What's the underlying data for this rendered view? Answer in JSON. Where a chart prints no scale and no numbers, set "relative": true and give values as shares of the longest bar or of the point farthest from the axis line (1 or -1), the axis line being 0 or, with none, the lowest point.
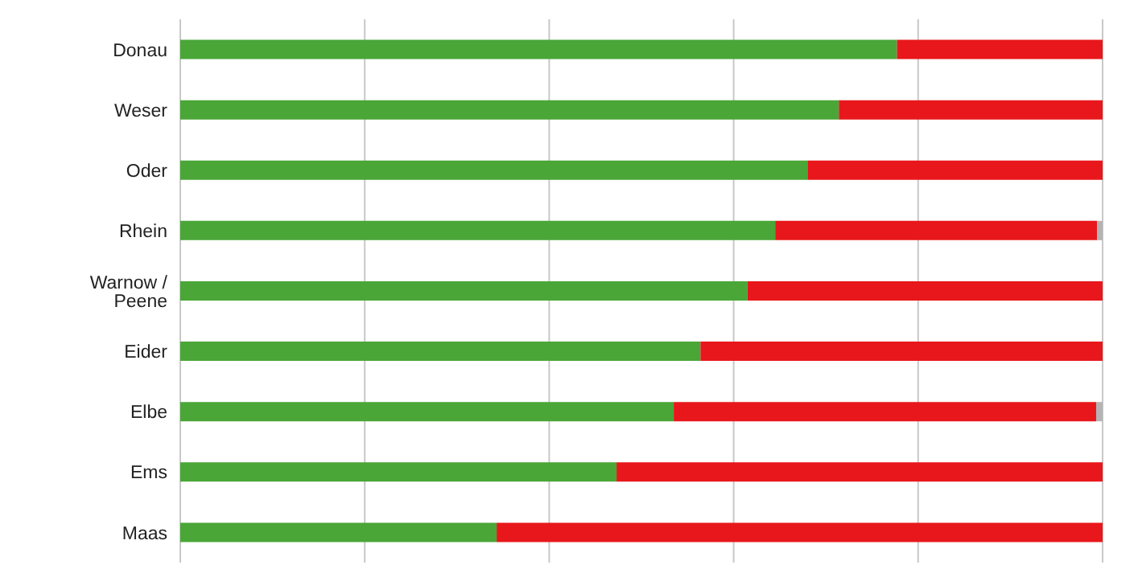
{
  "chart_data": {
    "type": "bar",
    "orientation": "horizontal",
    "stacked": true,
    "relative": true,
    "grid": "x",
    "legend": false,
    "categories": [
      "Donau",
      "Weser",
      "Oder",
      "Rhein",
      "Warnow / Peene",
      "Eider",
      "Elbe",
      "Ems",
      "Maas"
    ],
    "series": [
      {
        "color": "#4aa637",
        "values": [
          0.777,
          0.714,
          0.68,
          0.645,
          0.615,
          0.564,
          0.535,
          0.473,
          0.343
        ]
      },
      {
        "color": "#e8171b",
        "values": [
          0.223,
          0.286,
          0.32,
          0.349,
          0.385,
          0.436,
          0.458,
          0.527,
          0.657
        ]
      },
      {
        "color": "#b4b4b4",
        "values": [
          null,
          null,
          null,
          0.006,
          null,
          null,
          0.007,
          null,
          null
        ]
      }
    ]
  }
}
